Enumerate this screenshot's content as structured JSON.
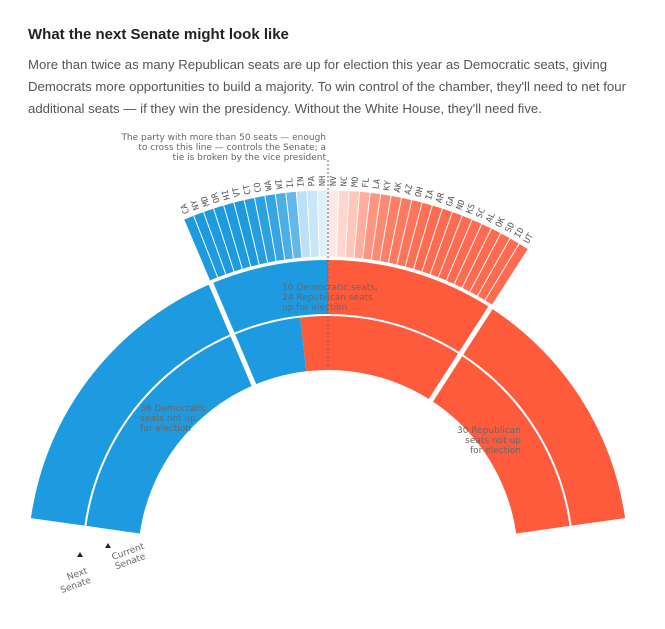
{
  "header": {
    "title": "What the next Senate might look like",
    "dek": "More than twice as many Republican seats are up for election this year as Democratic seats, giving Democrats more opportunities to build a majority. To win control of the chamber, they'll need to net four additional seats — if they win the presidency. Without the White House, they'll need five."
  },
  "chart_data": {
    "type": "semicircle-parliament",
    "title": "What the next Senate might look like",
    "total_seats": 100,
    "majority_line": 50,
    "colors": {
      "dem": "#1e9be0",
      "rep": "#fe5b3d",
      "dem_light": "#cfe0f7",
      "rep_light": "#fdd6cf"
    },
    "current_senate": {
      "dem_not_up": 36,
      "dem_up": 10,
      "rep_up": 24,
      "rep_not_up": 30
    },
    "next_senate_races": [
      {
        "state": "CA",
        "party": "dem",
        "shade": 1.0
      },
      {
        "state": "NY",
        "party": "dem",
        "shade": 1.0
      },
      {
        "state": "MD",
        "party": "dem",
        "shade": 1.0
      },
      {
        "state": "OR",
        "party": "dem",
        "shade": 1.0
      },
      {
        "state": "HI",
        "party": "dem",
        "shade": 1.0
      },
      {
        "state": "VT",
        "party": "dem",
        "shade": 1.0
      },
      {
        "state": "CT",
        "party": "dem",
        "shade": 0.97
      },
      {
        "state": "CO",
        "party": "dem",
        "shade": 0.94
      },
      {
        "state": "WA",
        "party": "dem",
        "shade": 0.9
      },
      {
        "state": "WI",
        "party": "dem",
        "shade": 0.8
      },
      {
        "state": "IL",
        "party": "dem",
        "shade": 0.7
      },
      {
        "state": "IN",
        "party": "dem",
        "shade": 0.3
      },
      {
        "state": "PA",
        "party": "dem",
        "shade": 0.25
      },
      {
        "state": "NH",
        "party": "dem",
        "shade": 0.15
      },
      {
        "state": "NV",
        "party": "rep",
        "shade": 0.15
      },
      {
        "state": "NC",
        "party": "rep",
        "shade": 0.25
      },
      {
        "state": "MO",
        "party": "rep",
        "shade": 0.35
      },
      {
        "state": "FL",
        "party": "rep",
        "shade": 0.5
      },
      {
        "state": "LA",
        "party": "rep",
        "shade": 0.65
      },
      {
        "state": "KY",
        "party": "rep",
        "shade": 0.72
      },
      {
        "state": "AK",
        "party": "rep",
        "shade": 0.78
      },
      {
        "state": "AZ",
        "party": "rep",
        "shade": 0.82
      },
      {
        "state": "OH",
        "party": "rep",
        "shade": 0.85
      },
      {
        "state": "IA",
        "party": "rep",
        "shade": 0.87
      },
      {
        "state": "AR",
        "party": "rep",
        "shade": 0.9
      },
      {
        "state": "GA",
        "party": "rep",
        "shade": 0.9
      },
      {
        "state": "ND",
        "party": "rep",
        "shade": 0.9
      },
      {
        "state": "KS",
        "party": "rep",
        "shade": 0.9
      },
      {
        "state": "SC",
        "party": "rep",
        "shade": 0.9
      },
      {
        "state": "AL",
        "party": "rep",
        "shade": 0.9
      },
      {
        "state": "OK",
        "party": "rep",
        "shade": 0.9
      },
      {
        "state": "SD",
        "party": "rep",
        "shade": 0.9
      },
      {
        "state": "ID",
        "party": "rep",
        "shade": 0.9
      },
      {
        "state": "UT",
        "party": "rep",
        "shade": 0.9
      }
    ],
    "annotations": {
      "majority_note": [
        "The party with more than 50 seats — enough",
        "to cross this line — controls the Senate; a",
        "tie is broken by the vice president"
      ],
      "up_for_election": [
        "10 Democratic seats,",
        "24 Republican seats",
        "up for election"
      ],
      "dem_not_up": [
        "36 Democratic",
        "seats not up",
        "for election"
      ],
      "rep_not_up": [
        "30 Republican",
        "seats not up",
        "for election"
      ],
      "next_senate": [
        "Next",
        "Senate"
      ],
      "current_senate": [
        "Current",
        "Senate"
      ]
    }
  }
}
